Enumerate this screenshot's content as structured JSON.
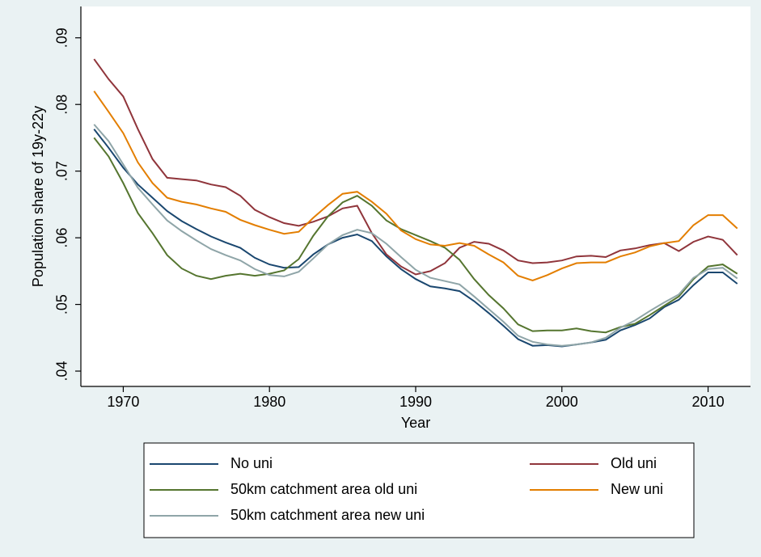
{
  "chart_data": {
    "type": "line",
    "y_label": "Population share of 19y-22y",
    "x_label": "Year",
    "x": [
      1968,
      1969,
      1970,
      1971,
      1972,
      1973,
      1974,
      1975,
      1976,
      1977,
      1978,
      1979,
      1980,
      1981,
      1982,
      1983,
      1984,
      1985,
      1986,
      1987,
      1988,
      1989,
      1990,
      1991,
      1992,
      1993,
      1994,
      1995,
      1996,
      1997,
      1998,
      1999,
      2000,
      2001,
      2002,
      2003,
      2004,
      2005,
      2006,
      2007,
      2008,
      2009,
      2010,
      2011,
      2012
    ],
    "series": [
      {
        "name": "No uni",
        "color": "#1a476f",
        "values": [
          0.0763,
          0.0735,
          0.0705,
          0.068,
          0.066,
          0.064,
          0.0625,
          0.0613,
          0.0602,
          0.0593,
          0.0585,
          0.057,
          0.056,
          0.0555,
          0.0556,
          0.0575,
          0.059,
          0.06,
          0.0605,
          0.0595,
          0.0572,
          0.0553,
          0.0538,
          0.0527,
          0.0524,
          0.052,
          0.0505,
          0.0487,
          0.0468,
          0.0448,
          0.0438,
          0.0439,
          0.0437,
          0.044,
          0.0443,
          0.0447,
          0.0461,
          0.0469,
          0.0479,
          0.0496,
          0.0507,
          0.0529,
          0.0548,
          0.0548,
          0.0531
        ]
      },
      {
        "name": "Old uni",
        "color": "#90353b",
        "values": [
          0.0868,
          0.0838,
          0.0812,
          0.0763,
          0.0718,
          0.069,
          0.0688,
          0.0686,
          0.068,
          0.0676,
          0.0663,
          0.0642,
          0.0631,
          0.0622,
          0.0618,
          0.0624,
          0.0632,
          0.0644,
          0.0648,
          0.0607,
          0.0575,
          0.0557,
          0.0545,
          0.055,
          0.0562,
          0.0585,
          0.0594,
          0.0591,
          0.0581,
          0.0566,
          0.0562,
          0.0563,
          0.0566,
          0.0572,
          0.0573,
          0.0571,
          0.0581,
          0.0584,
          0.0589,
          0.0592,
          0.058,
          0.0594,
          0.0602,
          0.0597,
          0.0574
        ]
      },
      {
        "name": "50km catchment area old uni",
        "color": "#55752f",
        "values": [
          0.075,
          0.0722,
          0.0682,
          0.0637,
          0.0607,
          0.0574,
          0.0554,
          0.0543,
          0.0538,
          0.0543,
          0.0546,
          0.0543,
          0.0546,
          0.0551,
          0.0568,
          0.0603,
          0.0632,
          0.0653,
          0.0663,
          0.0648,
          0.0626,
          0.0613,
          0.0604,
          0.0595,
          0.0585,
          0.0567,
          0.0538,
          0.0514,
          0.0494,
          0.047,
          0.046,
          0.0461,
          0.0461,
          0.0464,
          0.046,
          0.0458,
          0.0466,
          0.0471,
          0.0484,
          0.0498,
          0.0512,
          0.0538,
          0.0557,
          0.056,
          0.0546
        ]
      },
      {
        "name": "New uni",
        "color": "#e37e00",
        "values": [
          0.082,
          0.0789,
          0.0757,
          0.0713,
          0.0682,
          0.066,
          0.0654,
          0.065,
          0.0644,
          0.0639,
          0.0627,
          0.0619,
          0.0612,
          0.0606,
          0.0609,
          0.063,
          0.0649,
          0.0666,
          0.0669,
          0.0654,
          0.0636,
          0.0611,
          0.0598,
          0.059,
          0.0588,
          0.0592,
          0.0588,
          0.0575,
          0.0563,
          0.0543,
          0.0536,
          0.0544,
          0.0554,
          0.0562,
          0.0563,
          0.0563,
          0.0572,
          0.0578,
          0.0587,
          0.0592,
          0.0595,
          0.0619,
          0.0634,
          0.0634,
          0.0614
        ]
      },
      {
        "name": "50km catchment area new uni",
        "color": "#8fa5a8",
        "values": [
          0.077,
          0.0745,
          0.071,
          0.0675,
          0.065,
          0.0626,
          0.061,
          0.0596,
          0.0583,
          0.0574,
          0.0566,
          0.0553,
          0.0544,
          0.0542,
          0.0549,
          0.0569,
          0.059,
          0.0604,
          0.0612,
          0.0607,
          0.0591,
          0.0571,
          0.0552,
          0.054,
          0.0535,
          0.053,
          0.0512,
          0.0493,
          0.0474,
          0.0453,
          0.0444,
          0.044,
          0.0438,
          0.044,
          0.0443,
          0.045,
          0.0465,
          0.0476,
          0.049,
          0.0503,
          0.0515,
          0.054,
          0.0553,
          0.0555,
          0.0539
        ]
      }
    ],
    "xlim": [
      1967.1,
      2012.9
    ],
    "xticks": [
      1970,
      1980,
      1990,
      2000,
      2010
    ],
    "ylim": [
      0.0377,
      0.0947
    ],
    "yticks": [
      {
        "value": 0.04,
        "label": ".04"
      },
      {
        "value": 0.05,
        "label": ".05"
      },
      {
        "value": 0.06,
        "label": ".06"
      },
      {
        "value": 0.07,
        "label": ".07"
      },
      {
        "value": 0.08,
        "label": ".08"
      },
      {
        "value": 0.09,
        "label": ".09"
      }
    ],
    "grid": false,
    "legend": "bottom"
  }
}
